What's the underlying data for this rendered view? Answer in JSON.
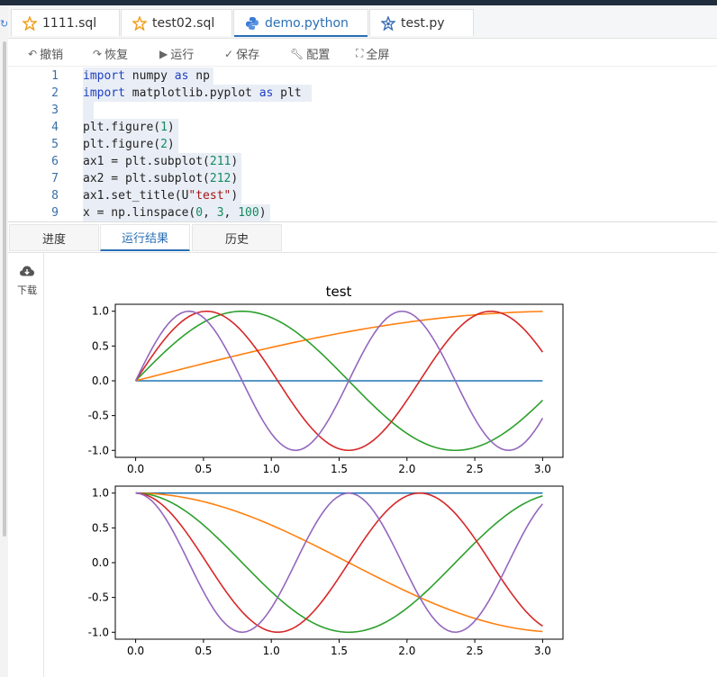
{
  "tabs": [
    {
      "label": "1111.sql",
      "icon": "star-icon"
    },
    {
      "label": "test02.sql",
      "icon": "star-icon"
    },
    {
      "label": "demo.python",
      "icon": "python-icon",
      "active": true
    },
    {
      "label": "test.py",
      "icon": "gear-star-icon"
    }
  ],
  "toolbar": {
    "undo": "撤销",
    "redo": "恢复",
    "run": "运行",
    "save": "保存",
    "config": "配置",
    "fullscreen": "全屏"
  },
  "code": [
    {
      "num": "1",
      "text": "import numpy as np"
    },
    {
      "num": "2",
      "text": "import matplotlib.pyplot as plt"
    },
    {
      "num": "3",
      "text": ""
    },
    {
      "num": "4",
      "text": "plt.figure(1)"
    },
    {
      "num": "5",
      "text": "plt.figure(2)"
    },
    {
      "num": "6",
      "text": "ax1 = plt.subplot(211)"
    },
    {
      "num": "7",
      "text": "ax2 = plt.subplot(212)"
    },
    {
      "num": "8",
      "text": "ax1.set_title(U\"test\")"
    },
    {
      "num": "9",
      "text": "x = np.linspace(0, 3, 100)"
    }
  ],
  "result_tabs": {
    "progress": "进度",
    "results": "运行结果",
    "history": "历史"
  },
  "download_label": "下载",
  "chart_data": [
    {
      "type": "line",
      "title": "test",
      "xlim": [
        -0.15,
        3.15
      ],
      "ylim": [
        -1.1,
        1.1
      ],
      "xticks": [
        "0.0",
        "0.5",
        "1.0",
        "1.5",
        "2.0",
        "2.5",
        "3.0"
      ],
      "yticks": [
        "1.0",
        "0.5",
        "0.0",
        "-0.5",
        "-1.0"
      ],
      "x_range": [
        0,
        3
      ],
      "series": [
        {
          "func": "sin",
          "k": 0,
          "color": "#1f77b4"
        },
        {
          "func": "sin",
          "k": 0.5,
          "color": "#ff7f0e"
        },
        {
          "func": "sin",
          "k": 2,
          "color": "#2ca02c"
        },
        {
          "func": "sin",
          "k": 3,
          "color": "#d62728"
        },
        {
          "func": "sin",
          "k": 4,
          "color": "#9467bd"
        }
      ]
    },
    {
      "type": "line",
      "title": "",
      "xlim": [
        -0.15,
        3.15
      ],
      "ylim": [
        -1.1,
        1.1
      ],
      "xticks": [
        "0.0",
        "0.5",
        "1.0",
        "1.5",
        "2.0",
        "2.5",
        "3.0"
      ],
      "yticks": [
        "1.0",
        "0.5",
        "0.0",
        "-0.5",
        "-1.0"
      ],
      "x_range": [
        0,
        3
      ],
      "series": [
        {
          "func": "cos",
          "k": 0,
          "color": "#1f77b4"
        },
        {
          "func": "cos",
          "k": 1,
          "color": "#ff7f0e"
        },
        {
          "func": "cos",
          "k": 2,
          "color": "#2ca02c"
        },
        {
          "func": "cos",
          "k": 3,
          "color": "#d62728"
        },
        {
          "func": "cos",
          "k": 4,
          "color": "#9467bd"
        }
      ]
    }
  ]
}
